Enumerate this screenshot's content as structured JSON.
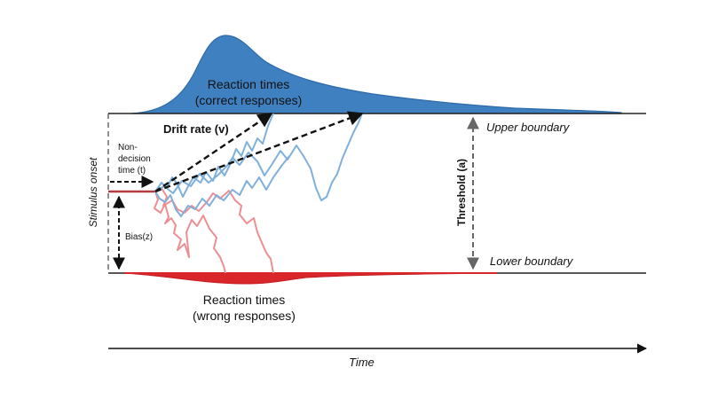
{
  "labels": {
    "correct_rt_line1": "Reaction times",
    "correct_rt_line2": "(correct responses)",
    "wrong_rt_line1": "Reaction times",
    "wrong_rt_line2": "(wrong responses)",
    "drift_rate": "Drift rate (v)",
    "upper_boundary": "Upper boundary",
    "lower_boundary": "Lower boundary",
    "threshold": "Threshold (a)",
    "stimulus_onset": "Stimulus onset",
    "non_decision_line1": "Non-",
    "non_decision_line2": "decision",
    "non_decision_line3": "time (t)",
    "bias": "Bias(z)",
    "time_axis": "Time"
  },
  "colors": {
    "correct": "#3a7dbf",
    "correct_fill": "#3f80c1",
    "correct_path": "#7fb0dc",
    "wrong": "#d9262b",
    "wrong_path": "#ec8f93",
    "boundary": "#222222",
    "threshold_arrow": "#666666"
  }
}
